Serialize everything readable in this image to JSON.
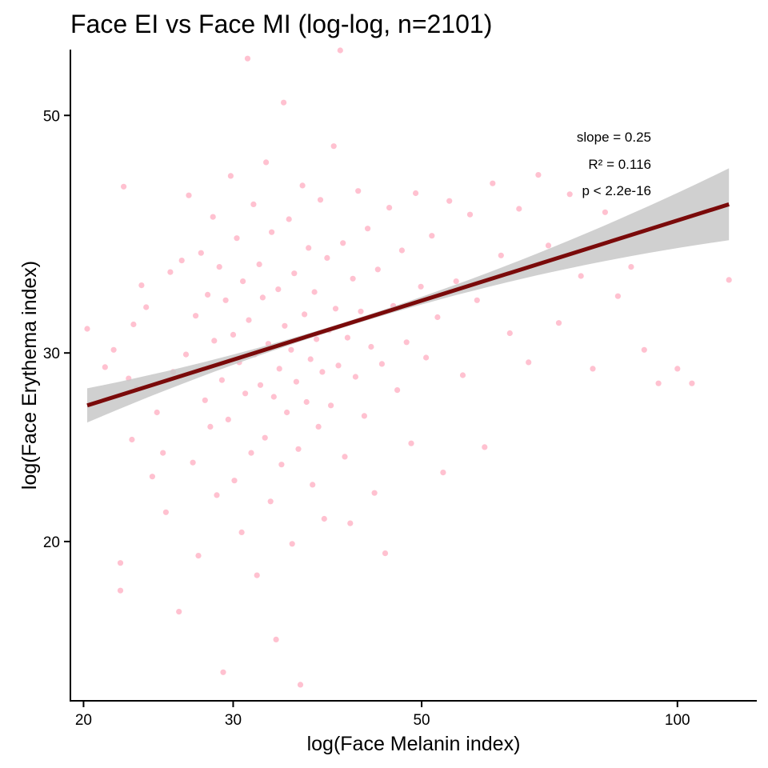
{
  "chart_data": {
    "type": "scatter",
    "title": "Face EI vs Face MI (log-log, n=2101)",
    "xlabel": "log(Face Melanin index)",
    "ylabel": "log(Face Erythema index)",
    "x_scale": "log",
    "y_scale": "log",
    "xlim": [
      19.3,
      124
    ],
    "ylim": [
      14.2,
      57.6
    ],
    "x_ticks": [
      20,
      30,
      50,
      100
    ],
    "y_ticks": [
      20,
      30,
      50
    ],
    "grid": false,
    "point_color": "#ffb6c8",
    "fit_line": {
      "slope": 0.25,
      "x_range": [
        20.2,
        115
      ],
      "y_range": [
        26.8,
        41.3
      ],
      "color": "#7a0a0a",
      "ci_band": true,
      "ci_color": "#c8c8c8"
    },
    "annotations": [
      "slope = 0.25",
      "R² = 0.116",
      "p < 2.2e-16"
    ],
    "points": [
      [
        20.2,
        31.6
      ],
      [
        21.2,
        29.1
      ],
      [
        21.7,
        30.2
      ],
      [
        22.1,
        19.1
      ],
      [
        22.1,
        18.0
      ],
      [
        22.3,
        42.9
      ],
      [
        22.6,
        28.4
      ],
      [
        22.8,
        24.9
      ],
      [
        22.9,
        31.9
      ],
      [
        23.1,
        27.8
      ],
      [
        23.4,
        34.7
      ],
      [
        23.7,
        33.1
      ],
      [
        24.1,
        23.0
      ],
      [
        24.4,
        26.4
      ],
      [
        24.8,
        24.2
      ],
      [
        25.0,
        21.3
      ],
      [
        25.3,
        35.7
      ],
      [
        25.5,
        28.8
      ],
      [
        25.9,
        17.2
      ],
      [
        26.1,
        36.6
      ],
      [
        26.4,
        29.9
      ],
      [
        26.6,
        42.1
      ],
      [
        26.9,
        23.7
      ],
      [
        27.1,
        32.5
      ],
      [
        27.3,
        19.4
      ],
      [
        27.5,
        37.2
      ],
      [
        27.8,
        27.1
      ],
      [
        28.0,
        34.0
      ],
      [
        28.2,
        25.6
      ],
      [
        28.4,
        40.2
      ],
      [
        28.5,
        30.8
      ],
      [
        28.7,
        22.1
      ],
      [
        28.9,
        36.1
      ],
      [
        29.1,
        28.3
      ],
      [
        29.2,
        15.1
      ],
      [
        29.4,
        33.6
      ],
      [
        29.6,
        26.0
      ],
      [
        29.8,
        43.9
      ],
      [
        30.0,
        31.2
      ],
      [
        30.1,
        22.8
      ],
      [
        30.3,
        38.4
      ],
      [
        30.5,
        29.4
      ],
      [
        30.7,
        20.4
      ],
      [
        30.8,
        35.0
      ],
      [
        31.0,
        27.5
      ],
      [
        31.2,
        56.5
      ],
      [
        31.3,
        32.2
      ],
      [
        31.5,
        24.2
      ],
      [
        31.7,
        41.3
      ],
      [
        31.8,
        29.9
      ],
      [
        32.0,
        18.6
      ],
      [
        32.2,
        36.3
      ],
      [
        32.3,
        28.0
      ],
      [
        32.5,
        33.8
      ],
      [
        32.7,
        25.0
      ],
      [
        32.8,
        45.2
      ],
      [
        33.0,
        30.6
      ],
      [
        33.2,
        21.8
      ],
      [
        33.3,
        38.9
      ],
      [
        33.5,
        27.3
      ],
      [
        33.7,
        16.2
      ],
      [
        33.9,
        34.4
      ],
      [
        34.0,
        29.0
      ],
      [
        34.2,
        23.6
      ],
      [
        34.4,
        51.4
      ],
      [
        34.5,
        31.8
      ],
      [
        34.7,
        26.4
      ],
      [
        34.9,
        40.0
      ],
      [
        35.1,
        30.2
      ],
      [
        35.2,
        19.9
      ],
      [
        35.4,
        35.6
      ],
      [
        35.6,
        28.2
      ],
      [
        35.8,
        24.4
      ],
      [
        36.0,
        14.7
      ],
      [
        36.2,
        43.0
      ],
      [
        36.4,
        32.6
      ],
      [
        36.6,
        27.0
      ],
      [
        36.8,
        37.6
      ],
      [
        37.0,
        29.6
      ],
      [
        37.2,
        22.6
      ],
      [
        37.4,
        34.2
      ],
      [
        37.6,
        30.9
      ],
      [
        37.8,
        25.6
      ],
      [
        38.0,
        41.7
      ],
      [
        38.2,
        28.8
      ],
      [
        38.4,
        21.0
      ],
      [
        38.7,
        36.8
      ],
      [
        38.9,
        31.5
      ],
      [
        39.1,
        26.8
      ],
      [
        39.4,
        46.8
      ],
      [
        39.6,
        33.0
      ],
      [
        39.9,
        29.2
      ],
      [
        40.1,
        57.5
      ],
      [
        40.4,
        38.0
      ],
      [
        40.6,
        24.0
      ],
      [
        40.9,
        31.0
      ],
      [
        41.2,
        20.8
      ],
      [
        41.5,
        35.2
      ],
      [
        41.8,
        28.5
      ],
      [
        42.1,
        42.5
      ],
      [
        42.4,
        32.8
      ],
      [
        42.8,
        26.2
      ],
      [
        43.2,
        39.2
      ],
      [
        43.6,
        30.4
      ],
      [
        44.0,
        22.2
      ],
      [
        44.4,
        35.9
      ],
      [
        44.9,
        29.3
      ],
      [
        45.3,
        19.5
      ],
      [
        45.8,
        41.0
      ],
      [
        46.3,
        33.2
      ],
      [
        46.8,
        27.7
      ],
      [
        47.4,
        37.4
      ],
      [
        48.0,
        30.7
      ],
      [
        48.6,
        24.7
      ],
      [
        49.2,
        42.3
      ],
      [
        49.9,
        34.6
      ],
      [
        50.6,
        29.7
      ],
      [
        51.4,
        38.6
      ],
      [
        52.2,
        32.4
      ],
      [
        53.0,
        23.2
      ],
      [
        53.9,
        41.6
      ],
      [
        54.9,
        35.0
      ],
      [
        55.9,
        28.6
      ],
      [
        57.0,
        40.4
      ],
      [
        58.1,
        33.6
      ],
      [
        59.3,
        24.5
      ],
      [
        60.6,
        43.2
      ],
      [
        62.0,
        37.0
      ],
      [
        63.5,
        31.3
      ],
      [
        65.1,
        40.9
      ],
      [
        66.8,
        29.4
      ],
      [
        68.6,
        44.0
      ],
      [
        70.5,
        37.8
      ],
      [
        72.5,
        32.0
      ],
      [
        74.7,
        42.2
      ],
      [
        77.0,
        35.4
      ],
      [
        79.5,
        29.0
      ],
      [
        82.2,
        40.6
      ],
      [
        85.1,
        33.9
      ],
      [
        88.2,
        36.1
      ],
      [
        91.4,
        30.2
      ],
      [
        95.0,
        28.1
      ],
      [
        100.0,
        29.0
      ],
      [
        104.0,
        28.1
      ],
      [
        115.0,
        35.1
      ]
    ]
  }
}
